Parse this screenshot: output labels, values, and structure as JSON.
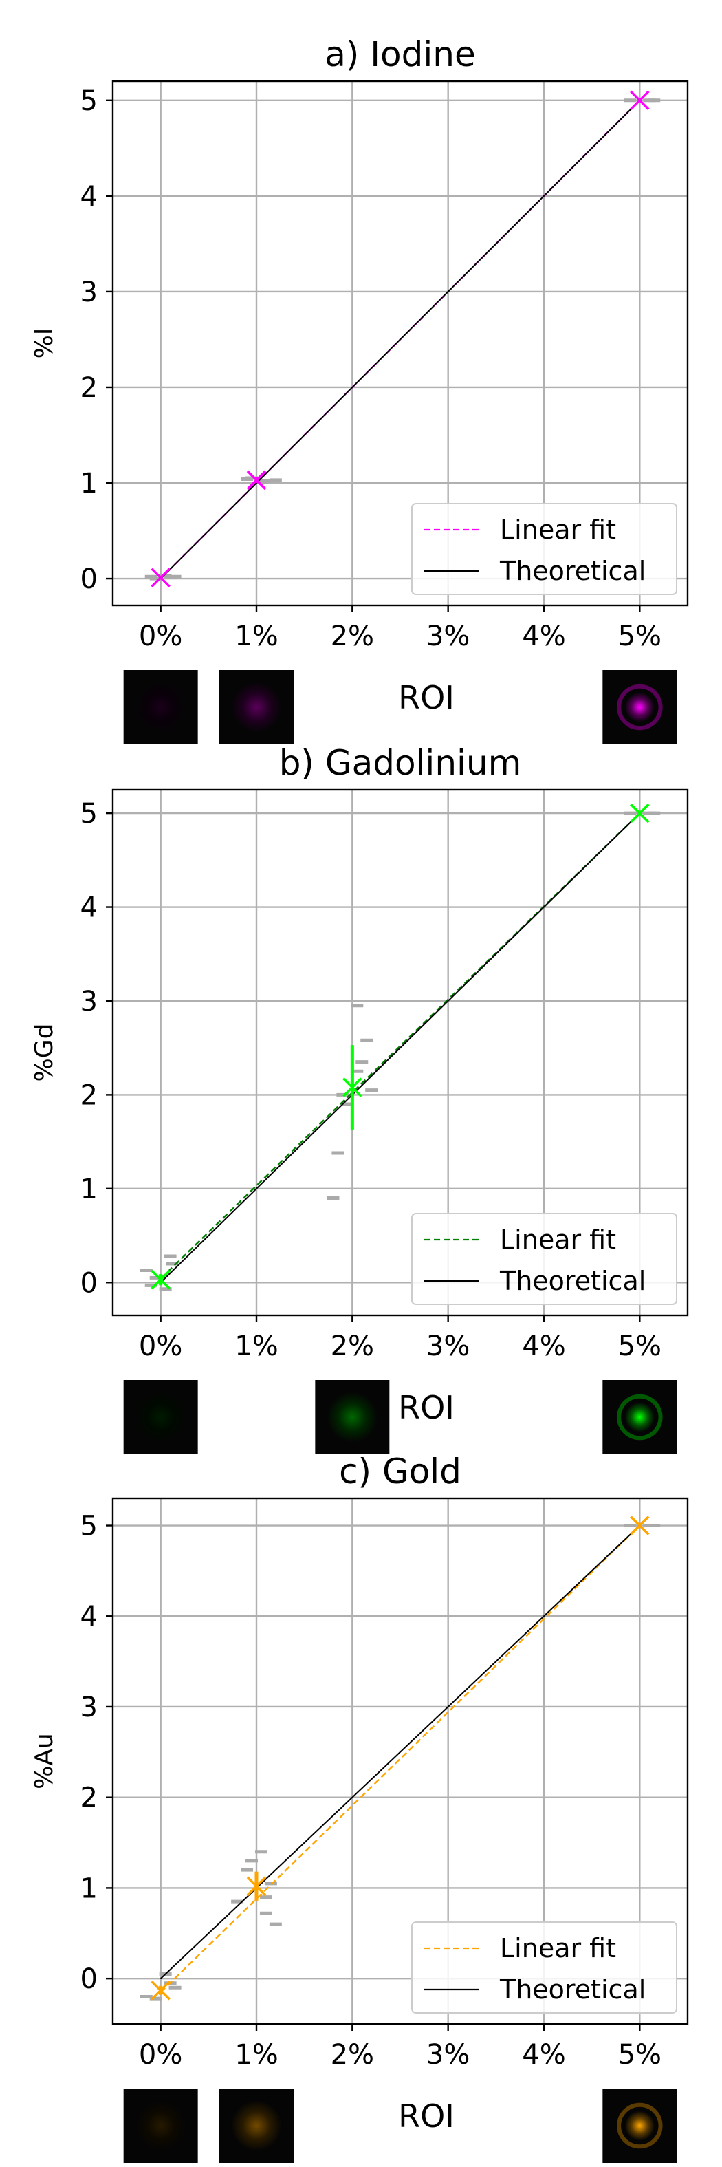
{
  "chart_data": [
    {
      "type": "scatter",
      "title": "a) Iodine",
      "xlabel": "ROI",
      "ylabel": "%I",
      "x_tick_labels": [
        "0%",
        "1%",
        "2%",
        "3%",
        "4%",
        "5%"
      ],
      "x_ticks": [
        0,
        1,
        2,
        3,
        4,
        5
      ],
      "y_ticks": [
        0,
        1,
        2,
        3,
        4,
        5
      ],
      "xlim": [
        -0.5,
        5.5
      ],
      "ylim": [
        -0.28,
        5.2
      ],
      "grid": true,
      "legend_position": "lower-right",
      "accent_color": "#ff00ff",
      "roi_concentrations": [
        "0%",
        "1%",
        "5%"
      ],
      "roi_thumbnail_levels": [
        0.1,
        0.35,
        1.0
      ],
      "series": [
        {
          "name": "Linear fit",
          "style": "dashed",
          "color": "#ff00ff",
          "x": [
            0,
            5
          ],
          "y": [
            0.0,
            5.0
          ]
        },
        {
          "name": "Theoretical",
          "style": "solid",
          "color": "#000000",
          "x": [
            0,
            5
          ],
          "y": [
            0,
            5
          ]
        },
        {
          "style": "marker-x",
          "color": "#ff00ff",
          "x": [
            0,
            1,
            5
          ],
          "y": [
            0.01,
            1.03,
            5.0
          ],
          "yerr": [
            0.02,
            0.03,
            0.01
          ]
        },
        {
          "style": "dash-markers",
          "color": "#aaaaaa",
          "x": [
            -0.1,
            0.1,
            0.05,
            -0.05,
            0.15,
            0.9,
            1.1,
            0.95,
            1.05,
            1.2,
            4.9,
            5.1,
            5.15
          ],
          "y": [
            0.02,
            0.01,
            0.03,
            0.0,
            0.02,
            1.04,
            1.02,
            1.05,
            1.01,
            1.03,
            5.0,
            5.0,
            5.0
          ]
        }
      ]
    },
    {
      "type": "scatter",
      "title": "b) Gadolinium",
      "xlabel": "ROI",
      "ylabel": "%Gd",
      "x_tick_labels": [
        "0%",
        "1%",
        "2%",
        "3%",
        "4%",
        "5%"
      ],
      "x_ticks": [
        0,
        1,
        2,
        3,
        4,
        5
      ],
      "y_ticks": [
        0,
        1,
        2,
        3,
        4,
        5
      ],
      "xlim": [
        -0.5,
        5.5
      ],
      "ylim": [
        -0.35,
        5.25
      ],
      "grid": true,
      "legend_position": "lower-right",
      "accent_color": "#00ff00",
      "roi_concentrations": [
        "0%",
        "2%",
        "5%"
      ],
      "roi_thumbnail_levels": [
        0.1,
        0.4,
        1.0
      ],
      "series": [
        {
          "name": "Linear fit",
          "style": "dashed",
          "color": "#008000",
          "x": [
            0,
            5
          ],
          "y": [
            0.04,
            5.0
          ]
        },
        {
          "name": "Theoretical",
          "style": "solid",
          "color": "#000000",
          "x": [
            0,
            5
          ],
          "y": [
            0,
            5
          ]
        },
        {
          "style": "marker-x",
          "color": "#00ff00",
          "x": [
            0,
            2,
            5
          ],
          "y": [
            0.03,
            2.08,
            5.0
          ],
          "yerr": [
            0.06,
            0.45,
            0.01
          ]
        },
        {
          "style": "dash-markers",
          "color": "#aaaaaa",
          "x": [
            -0.15,
            -0.05,
            0.05,
            0.12,
            0.1,
            -0.1,
            1.8,
            1.85,
            1.9,
            1.95,
            2.05,
            2.1,
            2.15,
            2.2,
            2.05,
            4.9,
            5.1,
            5.15
          ],
          "y": [
            0.13,
            0.05,
            -0.07,
            0.2,
            0.28,
            -0.03,
            0.9,
            1.38,
            2.0,
            1.9,
            2.25,
            2.35,
            2.58,
            2.05,
            2.95,
            5.0,
            5.0,
            5.0
          ]
        }
      ]
    },
    {
      "type": "scatter",
      "title": "c) Gold",
      "xlabel": "ROI",
      "ylabel": "%Au",
      "x_tick_labels": [
        "0%",
        "1%",
        "2%",
        "3%",
        "4%",
        "5%"
      ],
      "x_ticks": [
        0,
        1,
        2,
        3,
        4,
        5
      ],
      "y_ticks": [
        0,
        1,
        2,
        3,
        4,
        5
      ],
      "xlim": [
        -0.5,
        5.5
      ],
      "ylim": [
        -0.5,
        5.3
      ],
      "grid": true,
      "legend_position": "lower-right",
      "accent_color": "#ffa500",
      "roi_concentrations": [
        "0%",
        "1%",
        "5%"
      ],
      "roi_thumbnail_levels": [
        0.15,
        0.45,
        1.0
      ],
      "series": [
        {
          "name": "Linear fit",
          "style": "dashed",
          "color": "#ffa500",
          "x": [
            0,
            5
          ],
          "y": [
            -0.15,
            5.0
          ]
        },
        {
          "name": "Theoretical",
          "style": "solid",
          "color": "#000000",
          "x": [
            0,
            5
          ],
          "y": [
            0,
            5
          ]
        },
        {
          "style": "marker-x",
          "color": "#ffa500",
          "x": [
            0,
            1,
            5
          ],
          "y": [
            -0.13,
            1.02,
            5.0
          ],
          "yerr": [
            0.05,
            0.16,
            0.01
          ]
        },
        {
          "style": "dash-markers",
          "color": "#aaaaaa",
          "x": [
            -0.15,
            -0.05,
            0.1,
            0.15,
            0.05,
            0.8,
            0.9,
            0.95,
            1.05,
            1.1,
            1.15,
            1.2,
            1.1,
            4.9,
            5.1,
            5.15
          ],
          "y": [
            -0.2,
            -0.22,
            -0.05,
            -0.1,
            0.05,
            0.85,
            1.2,
            1.3,
            1.4,
            0.9,
            1.05,
            0.6,
            0.72,
            5.0,
            5.0,
            5.0
          ]
        }
      ]
    }
  ]
}
